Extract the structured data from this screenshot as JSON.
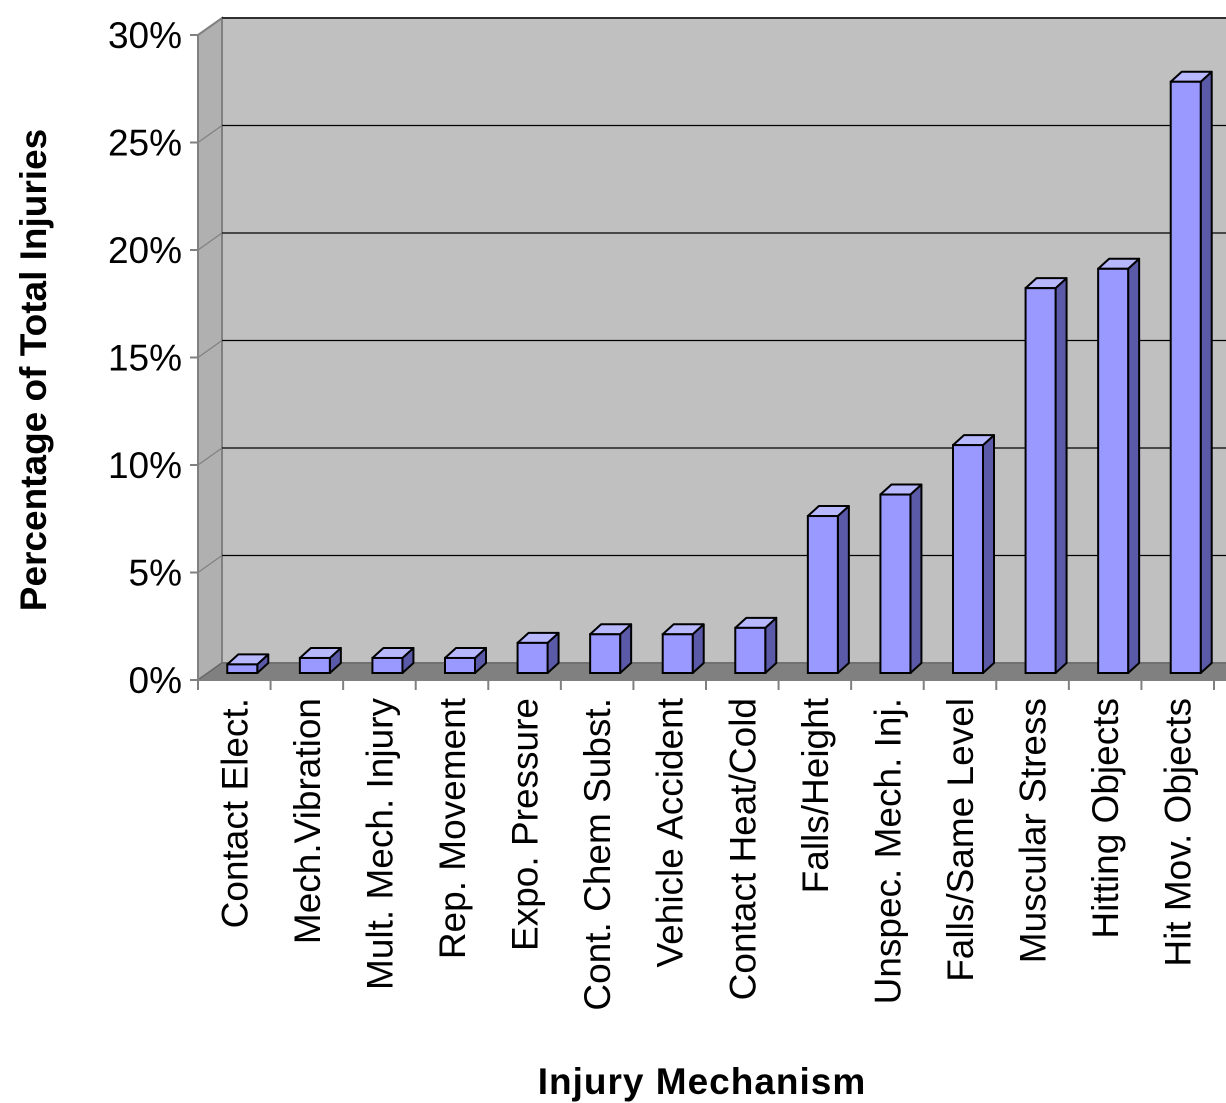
{
  "chart_data": {
    "type": "bar",
    "title": "",
    "xlabel": "Injury Mechanism",
    "ylabel": "Percentage of Total Injuries",
    "ylim": [
      0,
      30
    ],
    "y_ticks": [
      {
        "value": 0,
        "label": "0%"
      },
      {
        "value": 5,
        "label": "5%"
      },
      {
        "value": 10,
        "label": "10%"
      },
      {
        "value": 15,
        "label": "15%"
      },
      {
        "value": 20,
        "label": "20%"
      },
      {
        "value": 25,
        "label": "25%"
      },
      {
        "value": 30,
        "label": "30%"
      }
    ],
    "grid": true,
    "legend": "none",
    "style": "3d-column",
    "colors": {
      "bar_front": "#9999ff",
      "bar_side": "#5a5aa8",
      "bar_top": "#b8b8ff",
      "back_wall": "#c0c0c0",
      "side_wall": "#b0b0b0",
      "floor": "#808080",
      "gridline": "#000000"
    },
    "categories": [
      "Contact Elect.",
      "Mech.Vibration",
      "Mult. Mech. Injury",
      "Rep. Movement",
      "Expo. Pressure",
      "Cont. Chem Subst.",
      "Vehicle Accident",
      "Contact Heat/Cold",
      "Falls/Height",
      "Unspec. Mech. Inj.",
      "Falls/Same Level",
      "Muscular Stress",
      "Hitting Objects",
      "Hit Mov. Objects"
    ],
    "values": [
      0.4,
      0.7,
      0.7,
      0.7,
      1.4,
      1.8,
      1.8,
      2.1,
      7.3,
      8.3,
      10.6,
      17.9,
      18.8,
      27.5
    ]
  }
}
